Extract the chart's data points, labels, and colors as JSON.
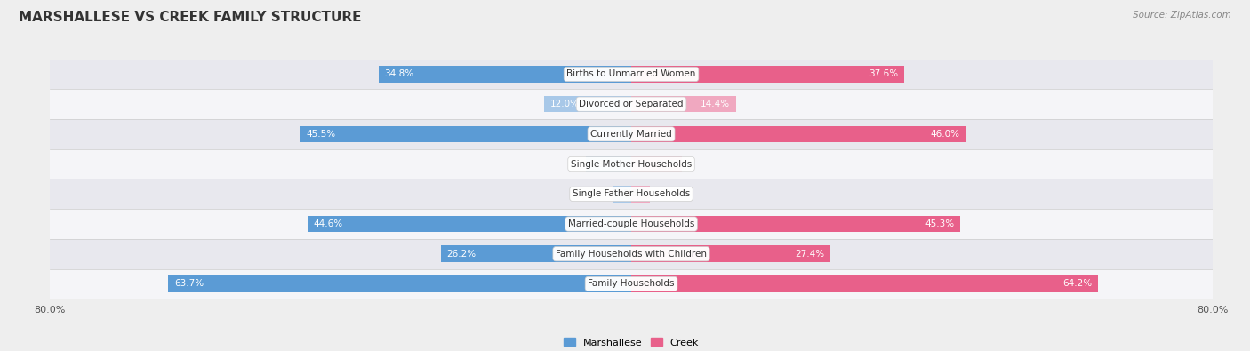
{
  "title": "MARSHALLESE VS CREEK FAMILY STRUCTURE",
  "source": "Source: ZipAtlas.com",
  "categories": [
    "Family Households",
    "Family Households with Children",
    "Married-couple Households",
    "Single Father Households",
    "Single Mother Households",
    "Currently Married",
    "Divorced or Separated",
    "Births to Unmarried Women"
  ],
  "marshallese": [
    63.7,
    26.2,
    44.6,
    2.4,
    6.3,
    45.5,
    12.0,
    34.8
  ],
  "creek": [
    64.2,
    27.4,
    45.3,
    2.6,
    7.0,
    46.0,
    14.4,
    37.6
  ],
  "max_val": 80.0,
  "blue_dark": "#5b9bd5",
  "blue_light": "#a8c8e8",
  "pink_dark": "#e8608a",
  "pink_light": "#f0a8c0",
  "bg_color": "#eeeeee",
  "row_bg_light": "#f5f5f8",
  "row_bg_dark": "#e8e8ee",
  "label_fontsize": 7.5,
  "title_fontsize": 11,
  "legend_fontsize": 8,
  "axis_label_fontsize": 8
}
